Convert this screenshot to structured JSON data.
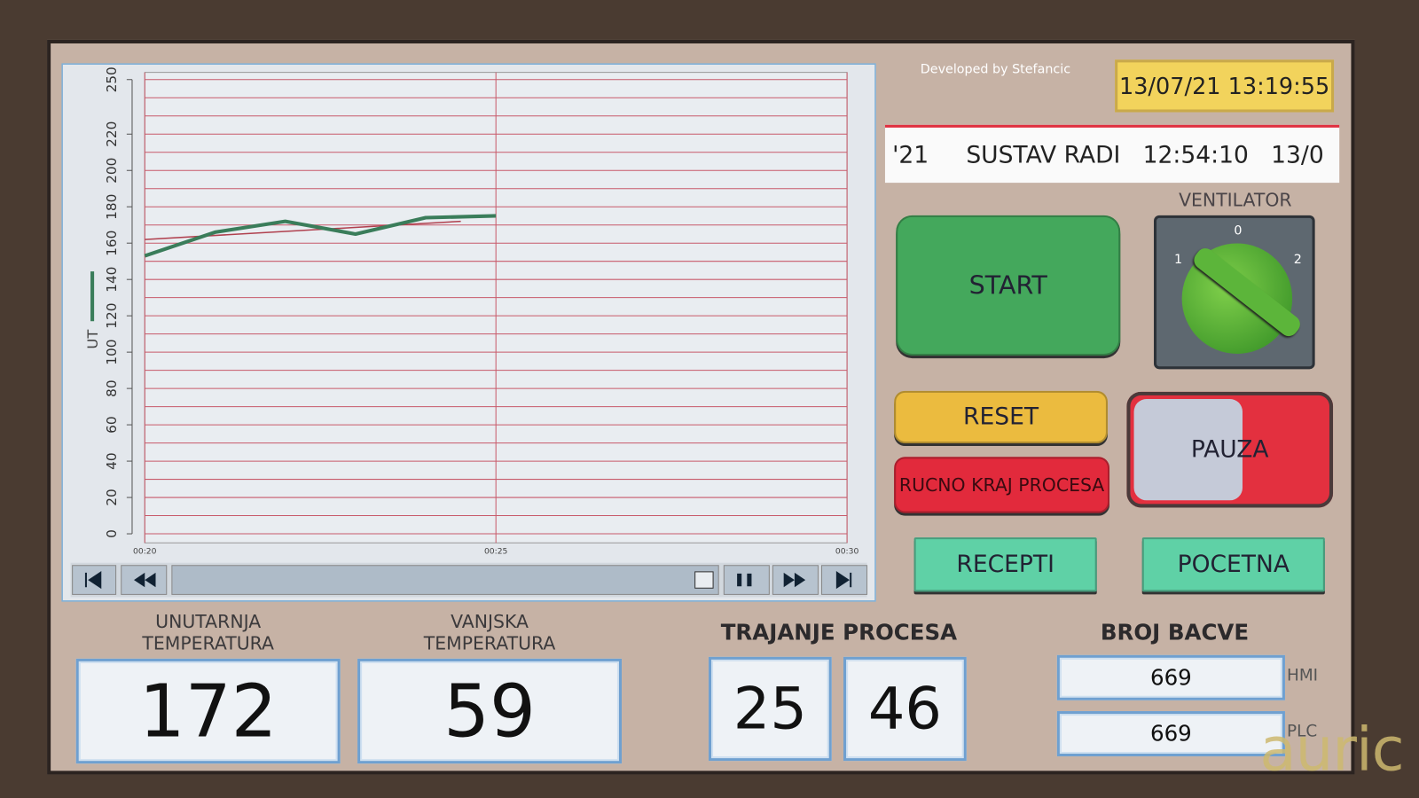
{
  "header": {
    "credit": "Developed by Stefancic",
    "datetime": "13/07/21 13:19:55",
    "status_ticker": "'21     SUSTAV RADI   12:54:10   13/0"
  },
  "chart_data": {
    "type": "line",
    "y_label": "UT",
    "xlim": [
      20,
      30
    ],
    "xticks": [
      {
        "value": 20,
        "label": "00:20"
      },
      {
        "value": 25,
        "label": "00:25"
      },
      {
        "value": 30,
        "label": "00:30"
      }
    ],
    "ylim": [
      0,
      250
    ],
    "yticks": [
      0,
      20,
      40,
      60,
      80,
      100,
      120,
      140,
      160,
      180,
      200,
      220,
      250
    ],
    "ygrid": [
      0,
      10,
      20,
      30,
      40,
      50,
      60,
      70,
      80,
      90,
      100,
      110,
      120,
      130,
      140,
      150,
      160,
      170,
      180,
      190,
      200,
      210,
      220,
      230,
      240,
      250
    ],
    "grid_color": "#c85a6a",
    "series": [
      {
        "color": "#3a7d5a",
        "x": [
          20,
          21,
          22,
          23,
          24,
          25
        ],
        "values": [
          153,
          166,
          172,
          165,
          174,
          175
        ]
      },
      {
        "color": "#b0404e",
        "x": [
          20,
          24.5
        ],
        "values": [
          162,
          172
        ]
      }
    ]
  },
  "controls": {
    "ventilator": {
      "label": "VENTILATOR",
      "positions": [
        "0",
        "1",
        "2"
      ]
    },
    "start": "START",
    "reset": "RESET",
    "manual_end": "RUCNO KRAJ PROCESA",
    "pause": "PAUZA",
    "recipes": "RECEPTI",
    "home": "POCETNA"
  },
  "readouts": {
    "inner_temp": {
      "label": "UNUTARNJA\nTEMPERATURA",
      "value": 172
    },
    "outer_temp": {
      "label": "VANJSKA\nTEMPERATURA",
      "value": 59
    },
    "duration": {
      "label": "TRAJANJE PROCESA",
      "values": [
        25,
        46
      ]
    },
    "barrel": {
      "label": "BROJ BACVE",
      "hmi": {
        "label": "HMI",
        "value": 669
      },
      "plc": {
        "label": "PLC",
        "value": 669
      }
    }
  },
  "watermark": "auric"
}
